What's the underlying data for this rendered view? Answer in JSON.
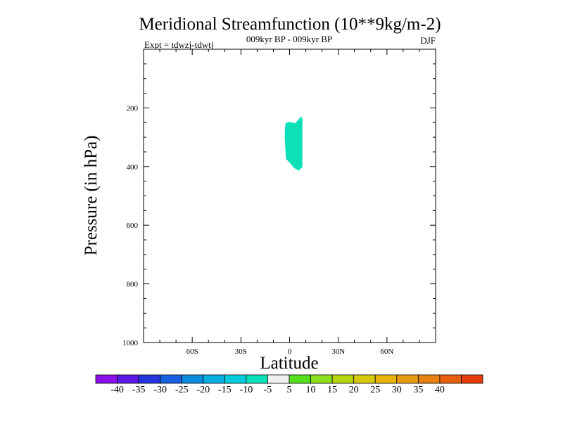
{
  "chart_data": {
    "type": "contour",
    "title": "Meridional Streamfunction (10**9kg/m-2)",
    "subtitle": "009kyr BP - 009kyr BP",
    "left_label": "Expt = tdwzj-tdwtj",
    "right_label": "DJF",
    "xlabel": "Latitude",
    "ylabel": "Pressure (in hPa)",
    "xlim": [
      -90,
      90
    ],
    "ylim": [
      1000,
      0
    ],
    "x_ticks": [
      {
        "value": -60,
        "label": "60S"
      },
      {
        "value": -30,
        "label": "30S"
      },
      {
        "value": 0,
        "label": "0"
      },
      {
        "value": 30,
        "label": "30N"
      },
      {
        "value": 60,
        "label": "60N"
      }
    ],
    "y_ticks": [
      {
        "value": 200,
        "label": "200"
      },
      {
        "value": 400,
        "label": "400"
      },
      {
        "value": 600,
        "label": "600"
      },
      {
        "value": 800,
        "label": "800"
      },
      {
        "value": 1000,
        "label": "1000"
      }
    ],
    "filled_regions": [
      {
        "level_range": [
          -10,
          -5
        ],
        "color": "#0be0b8",
        "outline": [
          [
            -2.6,
            253
          ],
          [
            -0.6,
            248
          ],
          [
            3.5,
            252
          ],
          [
            7.1,
            229
          ],
          [
            7.9,
            238
          ],
          [
            7.9,
            402
          ],
          [
            5.5,
            414
          ],
          [
            2.6,
            404
          ],
          [
            -0.2,
            385
          ],
          [
            -2.2,
            374
          ],
          [
            -2.6,
            340
          ],
          [
            -3.0,
            296
          ],
          [
            -2.8,
            270
          ]
        ]
      }
    ],
    "colorbar": {
      "colors": [
        "#8a0fe8",
        "#5a18e2",
        "#2634dc",
        "#1760e0",
        "#0d8ce0",
        "#05aee0",
        "#00cadc",
        "#0be0b8",
        "#efefef",
        "#55e01e",
        "#8ce01c",
        "#b8d60e",
        "#d6c80a",
        "#e6b40a",
        "#e69a10",
        "#e68010",
        "#e66010",
        "#e63c0c"
      ],
      "tick_labels": [
        "-40",
        "-35",
        "-30",
        "-25",
        "-20",
        "-15",
        "-10",
        "-5",
        "5",
        "10",
        "15",
        "20",
        "25",
        "30",
        "35",
        "40"
      ]
    }
  }
}
